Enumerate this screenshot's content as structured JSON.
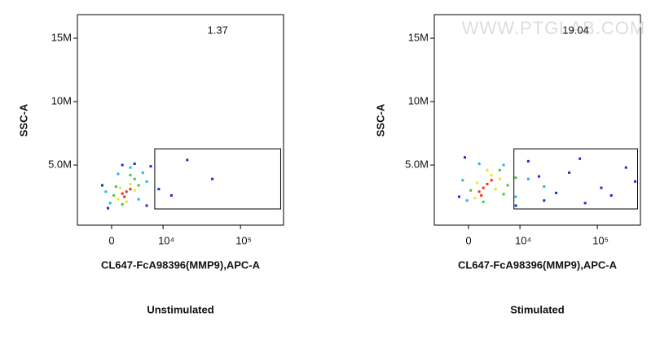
{
  "chart_data": [
    {
      "type": "scatter",
      "xscale": "biexponential",
      "x_label": "CL647-FcA98396(MMP9),APC-A",
      "y_label": "SSC-A",
      "caption": "Unstimulated",
      "xlim": [
        -5500,
        350000
      ],
      "ylim": [
        260000,
        16860000
      ],
      "xticks": [
        0,
        {
          "value": 10000,
          "label": "10⁴"
        },
        {
          "value": 100000,
          "label": "10⁵"
        }
      ],
      "yticks": [
        {
          "value": 5000000,
          "label": "5.0M"
        },
        {
          "value": 10000000,
          "label": "10M"
        },
        {
          "value": 15000000,
          "label": "15M"
        }
      ],
      "gate": {
        "x": [
          7600,
          322000
        ],
        "y": [
          1540000,
          6280000
        ],
        "percent": 1.37
      },
      "series": [
        {
          "color": "#1a2bd8",
          "x": [
            -1300,
            6600,
            8700,
            13000,
            21000,
            44000,
            -500,
            5700,
            3400,
            1500
          ],
          "y": [
            3400000,
            4900000,
            3100000,
            2600000,
            5400000,
            3900000,
            1600000,
            1800000,
            5100000,
            5000000
          ]
        },
        {
          "color": "#1fb8e0",
          "x": [
            -200,
            4900,
            900,
            4100,
            2700,
            -800,
            5700
          ],
          "y": [
            2000000,
            4400000,
            4300000,
            2300000,
            4800000,
            2900000,
            3700000
          ]
        },
        {
          "color": "#3ec93a",
          "x": [
            300,
            3400,
            4100,
            1500,
            2700,
            600
          ],
          "y": [
            2600000,
            3900000,
            3400000,
            1900000,
            4200000,
            3300000
          ]
        },
        {
          "color": "#f2e21a",
          "x": [
            900,
            2700,
            1200,
            3400,
            2100
          ],
          "y": [
            2300000,
            3500000,
            3200000,
            3000000,
            2100000
          ]
        },
        {
          "color": "#e8301c",
          "x": [
            1500,
            2100,
            1800,
            2700
          ],
          "y": [
            2750000,
            2900000,
            2500000,
            3100000
          ]
        }
      ]
    },
    {
      "type": "scatter",
      "xscale": "biexponential",
      "x_label": "CL647-FcA98396(MMP9),APC-A",
      "y_label": "SSC-A",
      "caption": "Stimulated",
      "watermark": "WWW.PTGLAB.COM",
      "xlim": [
        -5500,
        350000
      ],
      "ylim": [
        260000,
        16860000
      ],
      "xticks": [
        0,
        {
          "value": 10000,
          "label": "10⁴"
        },
        {
          "value": 100000,
          "label": "10⁵"
        }
      ],
      "yticks": [
        {
          "value": 5000000,
          "label": "5.0M"
        },
        {
          "value": 10000000,
          "label": "10M"
        },
        {
          "value": 15000000,
          "label": "15M"
        }
      ],
      "gate": {
        "x": [
          8200,
          322000
        ],
        "y": [
          1540000,
          6280000
        ],
        "percent": 19.04
      },
      "series": [
        {
          "color": "#1a2bd8",
          "x": [
            -1300,
            13000,
            21000,
            44000,
            112000,
            230000,
            8750,
            30000,
            70000,
            150000,
            -500,
            60000,
            18000,
            300000
          ],
          "y": [
            2500000,
            5300000,
            2200000,
            4400000,
            3200000,
            4800000,
            1800000,
            2800000,
            2000000,
            2600000,
            5600000,
            5500000,
            4100000,
            3700000
          ]
        },
        {
          "color": "#1fb8e0",
          "x": [
            -200,
            8700,
            13000,
            5700,
            1500,
            -800,
            21000
          ],
          "y": [
            2200000,
            2500000,
            3900000,
            5000000,
            5100000,
            3800000,
            3300000
          ]
        },
        {
          "color": "#3ec93a",
          "x": [
            300,
            4900,
            5700,
            2100,
            6600,
            8700
          ],
          "y": [
            3000000,
            4600000,
            2700000,
            2100000,
            3400000,
            4000000
          ]
        },
        {
          "color": "#f2e21a",
          "x": [
            900,
            3400,
            4100,
            2700,
            1200,
            4900
          ],
          "y": [
            2400000,
            4200000,
            3100000,
            4600000,
            3600000,
            3900000
          ]
        },
        {
          "color": "#e8301c",
          "x": [
            1500,
            2100,
            2700,
            1800,
            3400
          ],
          "y": [
            2900000,
            3200000,
            3500000,
            2600000,
            3800000
          ]
        }
      ]
    }
  ]
}
